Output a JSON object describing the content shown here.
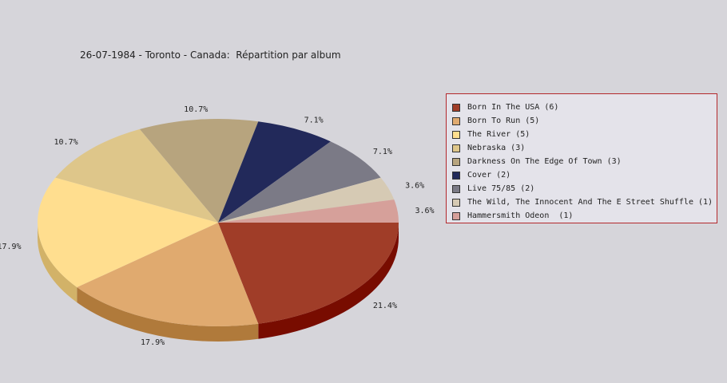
{
  "chart_data": {
    "type": "pie",
    "title": "26-07-1984 - Toronto - Canada:  Répartition par album",
    "legend_position": "right",
    "slices": [
      {
        "label": "Born In The USA (6)",
        "value": 6,
        "percent": "21.4%",
        "color": "#a03d28",
        "side_color": "#780c00"
      },
      {
        "label": "Born To Run (5)",
        "value": 5,
        "percent": "17.9%",
        "color": "#e0aa6f",
        "side_color": "#b07a3b"
      },
      {
        "label": "The River (5)",
        "value": 5,
        "percent": "17.9%",
        "color": "#ffde8f",
        "side_color": "#d2b268"
      },
      {
        "label": "Nebraska (3)",
        "value": 3,
        "percent": "10.7%",
        "color": "#dec68a",
        "side_color": "#b29a5e"
      },
      {
        "label": "Darkness On The Edge Of Town (3)",
        "value": 3,
        "percent": "10.7%",
        "color": "#b7a47e",
        "side_color": "#8a7a58"
      },
      {
        "label": "Cover (2)",
        "value": 2,
        "percent": "7.1%",
        "color": "#22295a",
        "side_color": "#10163a"
      },
      {
        "label": "Live 75/85 (2)",
        "value": 2,
        "percent": "7.1%",
        "color": "#7b7a86",
        "side_color": "#55545e"
      },
      {
        "label": "The Wild, The Innocent And The E Street Shuffle (1)",
        "value": 1,
        "percent": "3.6%",
        "color": "#d6cab4",
        "side_color": "#aa9e88"
      },
      {
        "label": "Hammersmith Odeon  (1)",
        "value": 1,
        "percent": "3.6%",
        "color": "#d6a09a",
        "side_color": "#aa746e"
      }
    ]
  }
}
